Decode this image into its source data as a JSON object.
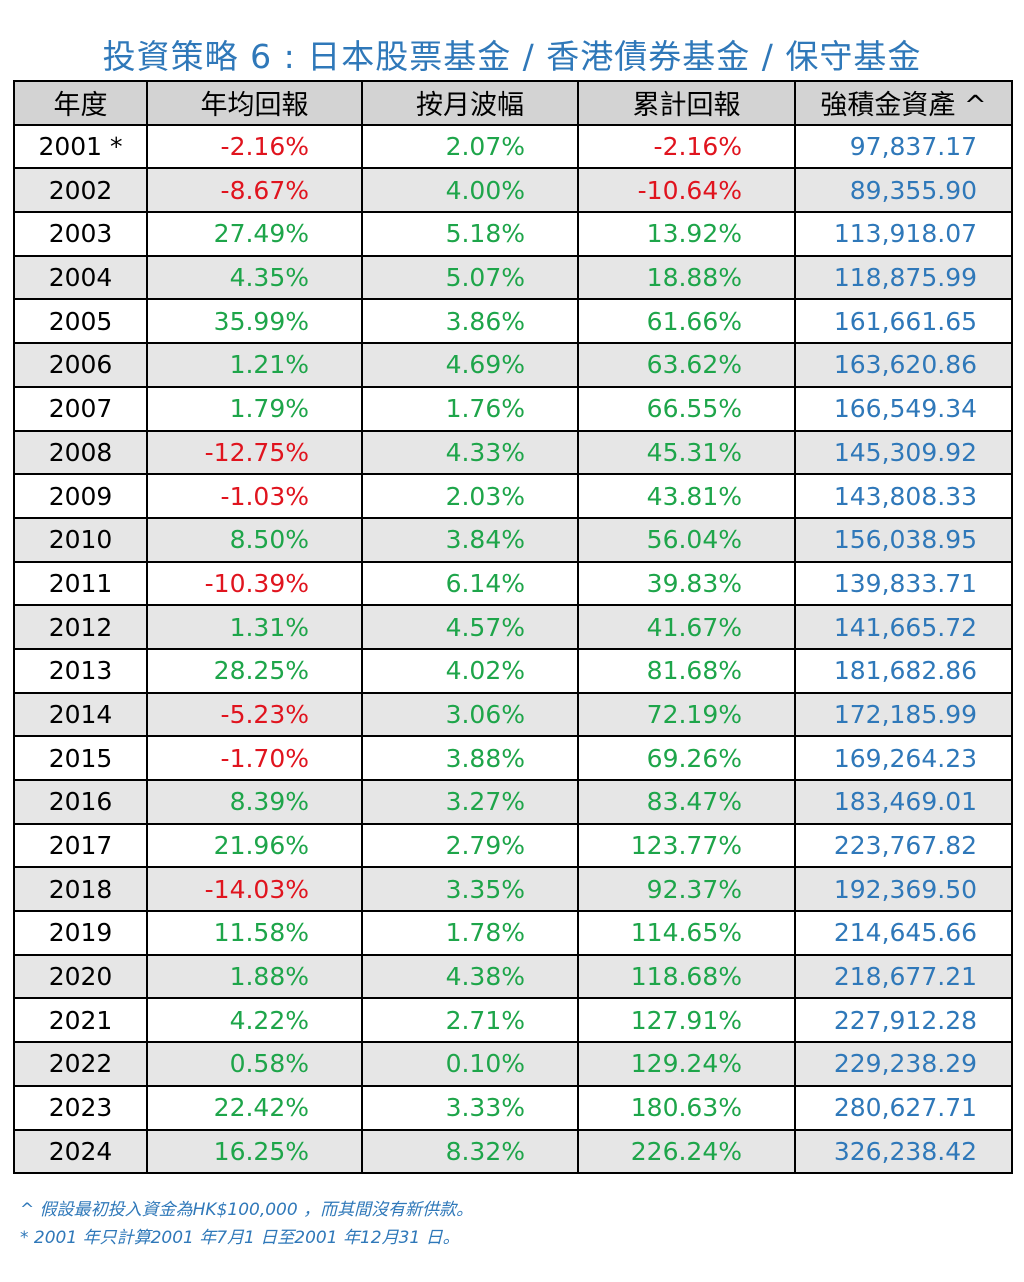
{
  "title": "投資策略 6 : 日本股票基金 / 香港債券基金  /  保守基金",
  "headers": [
    "年度",
    "年均回報",
    "按月波幅",
    "累計回報",
    "強積金資產 ^"
  ],
  "colors": {
    "title": "#2f78b9",
    "positive": "#1ea54a",
    "negative": "#e0141e",
    "balance": "#2f78b9",
    "header_bg": "#d3d3d3",
    "alt_row_bg": "#e6e6e6"
  },
  "rows": [
    {
      "year": "2001 *",
      "annual": "-2.16%",
      "volatility": "2.07%",
      "cumulative": "-2.16%",
      "balance": "97,837.17"
    },
    {
      "year": "2002",
      "annual": "-8.67%",
      "volatility": "4.00%",
      "cumulative": "-10.64%",
      "balance": "89,355.90"
    },
    {
      "year": "2003",
      "annual": "27.49%",
      "volatility": "5.18%",
      "cumulative": "13.92%",
      "balance": "113,918.07"
    },
    {
      "year": "2004",
      "annual": "4.35%",
      "volatility": "5.07%",
      "cumulative": "18.88%",
      "balance": "118,875.99"
    },
    {
      "year": "2005",
      "annual": "35.99%",
      "volatility": "3.86%",
      "cumulative": "61.66%",
      "balance": "161,661.65"
    },
    {
      "year": "2006",
      "annual": "1.21%",
      "volatility": "4.69%",
      "cumulative": "63.62%",
      "balance": "163,620.86"
    },
    {
      "year": "2007",
      "annual": "1.79%",
      "volatility": "1.76%",
      "cumulative": "66.55%",
      "balance": "166,549.34"
    },
    {
      "year": "2008",
      "annual": "-12.75%",
      "volatility": "4.33%",
      "cumulative": "45.31%",
      "balance": "145,309.92"
    },
    {
      "year": "2009",
      "annual": "-1.03%",
      "volatility": "2.03%",
      "cumulative": "43.81%",
      "balance": "143,808.33"
    },
    {
      "year": "2010",
      "annual": "8.50%",
      "volatility": "3.84%",
      "cumulative": "56.04%",
      "balance": "156,038.95"
    },
    {
      "year": "2011",
      "annual": "-10.39%",
      "volatility": "6.14%",
      "cumulative": "39.83%",
      "balance": "139,833.71"
    },
    {
      "year": "2012",
      "annual": "1.31%",
      "volatility": "4.57%",
      "cumulative": "41.67%",
      "balance": "141,665.72"
    },
    {
      "year": "2013",
      "annual": "28.25%",
      "volatility": "4.02%",
      "cumulative": "81.68%",
      "balance": "181,682.86"
    },
    {
      "year": "2014",
      "annual": "-5.23%",
      "volatility": "3.06%",
      "cumulative": "72.19%",
      "balance": "172,185.99"
    },
    {
      "year": "2015",
      "annual": "-1.70%",
      "volatility": "3.88%",
      "cumulative": "69.26%",
      "balance": "169,264.23"
    },
    {
      "year": "2016",
      "annual": "8.39%",
      "volatility": "3.27%",
      "cumulative": "83.47%",
      "balance": "183,469.01"
    },
    {
      "year": "2017",
      "annual": "21.96%",
      "volatility": "2.79%",
      "cumulative": "123.77%",
      "balance": "223,767.82"
    },
    {
      "year": "2018",
      "annual": "-14.03%",
      "volatility": "3.35%",
      "cumulative": "92.37%",
      "balance": "192,369.50"
    },
    {
      "year": "2019",
      "annual": "11.58%",
      "volatility": "1.78%",
      "cumulative": "114.65%",
      "balance": "214,645.66"
    },
    {
      "year": "2020",
      "annual": "1.88%",
      "volatility": "4.38%",
      "cumulative": "118.68%",
      "balance": "218,677.21"
    },
    {
      "year": "2021",
      "annual": "4.22%",
      "volatility": "2.71%",
      "cumulative": "127.91%",
      "balance": "227,912.28"
    },
    {
      "year": "2022",
      "annual": "0.58%",
      "volatility": "0.10%",
      "cumulative": "129.24%",
      "balance": "229,238.29"
    },
    {
      "year": "2023",
      "annual": "22.42%",
      "volatility": "3.33%",
      "cumulative": "180.63%",
      "balance": "280,627.71"
    },
    {
      "year": "2024",
      "annual": "16.25%",
      "volatility": "8.32%",
      "cumulative": "226.24%",
      "balance": "326,238.42"
    }
  ],
  "notes": [
    "^ 假設最初投入資金為HK$100,000 ，而其間沒有新供款。",
    "* 2001 年只計算2001 年7月1 日至2001 年12月31 日。"
  ]
}
